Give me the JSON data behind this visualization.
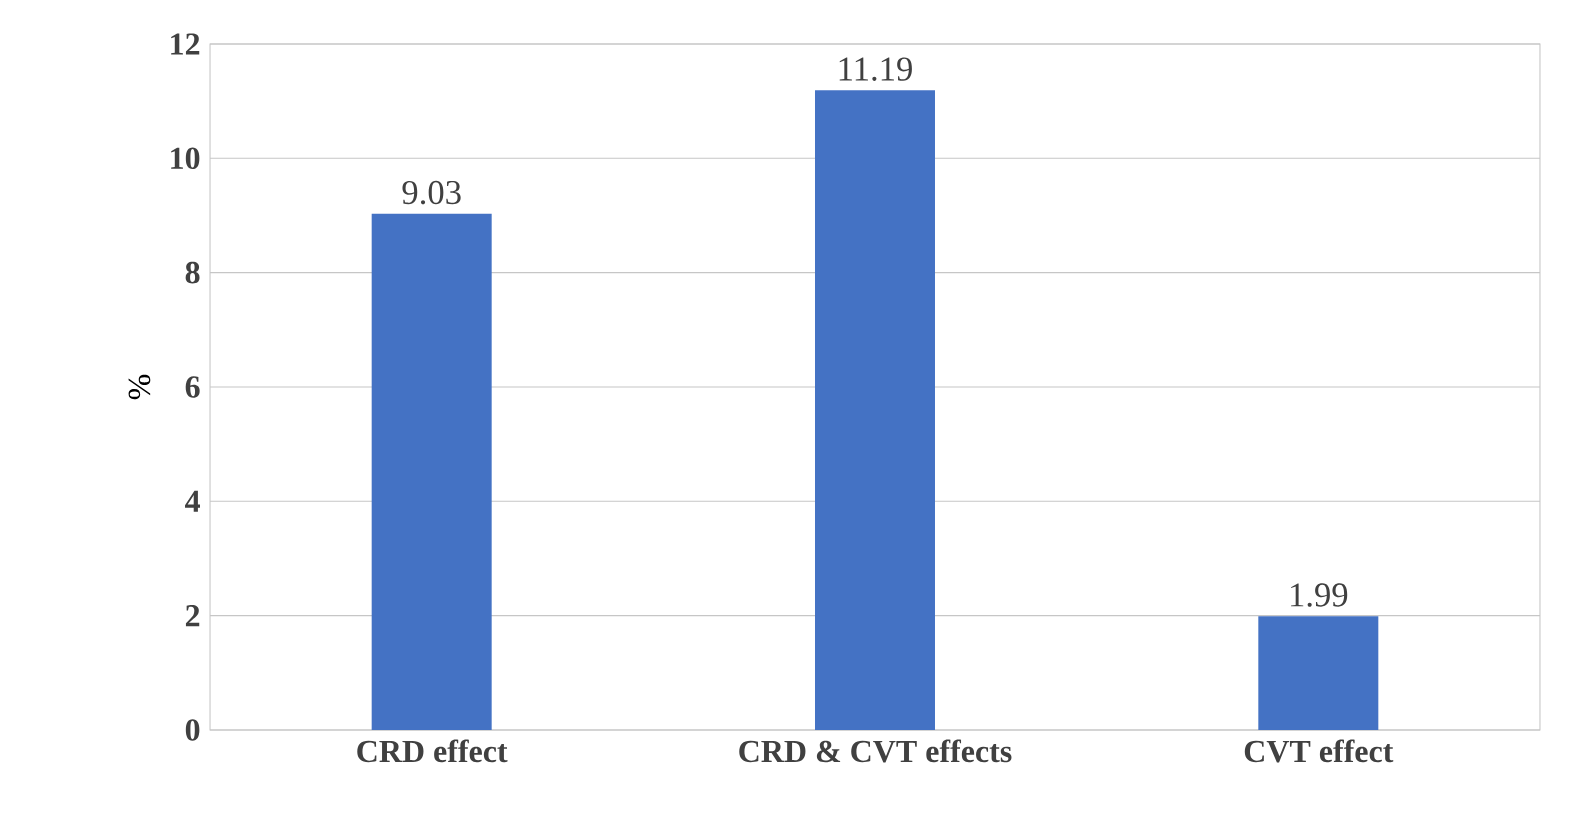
{
  "chart_data": {
    "type": "bar",
    "ylabel": "%",
    "categories": [
      "CRD effect",
      "CRD & CVT effects",
      "CVT effect"
    ],
    "values": [
      9.03,
      11.19,
      1.99
    ],
    "color": "#4472c4",
    "ylim": [
      0,
      12
    ],
    "yticks": [
      0,
      2,
      4,
      6,
      8,
      10,
      12
    ],
    "grid": "y",
    "data_labels": true
  }
}
